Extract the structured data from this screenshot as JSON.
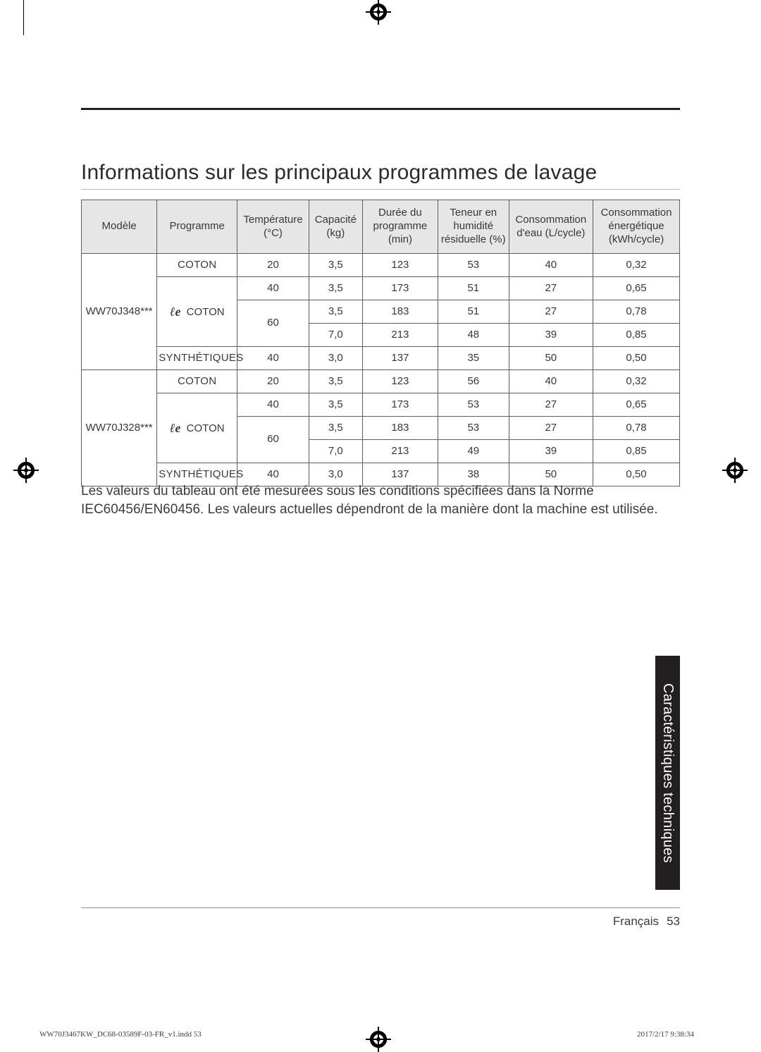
{
  "heading": "Informations sur les principaux programmes de lavage",
  "columns": [
    "Modèle",
    "Programme",
    "Température (°C)",
    "Capacité (kg)",
    "Durée du programme (min)",
    "Teneur en humidité résiduelle (%)",
    "Consommation d'eau (L/cycle)",
    "Consommation énergétique (kWh/cycle)"
  ],
  "models": [
    {
      "name": "WW70J348***",
      "rows": [
        {
          "programme": "COTON",
          "eco": false,
          "temp": "20",
          "cap": "3,5",
          "dur": "123",
          "hum": "53",
          "water": "40",
          "energy": "0,32"
        },
        {
          "programme": " COTON",
          "eco": true,
          "temp": "40",
          "cap": "3,5",
          "dur": "173",
          "hum": "51",
          "water": "27",
          "energy": "0,65"
        },
        {
          "programme": "",
          "eco": false,
          "temp": "60",
          "cap": "3,5",
          "dur": "183",
          "hum": "51",
          "water": "27",
          "energy": "0,78"
        },
        {
          "programme": "",
          "eco": false,
          "temp": "",
          "cap": "7,0",
          "dur": "213",
          "hum": "48",
          "water": "39",
          "energy": "0,85"
        },
        {
          "programme": "SYNTHÉTIQUES",
          "eco": false,
          "temp": "40",
          "cap": "3,0",
          "dur": "137",
          "hum": "35",
          "water": "50",
          "energy": "0,50"
        }
      ]
    },
    {
      "name": "WW70J328***",
      "rows": [
        {
          "programme": "COTON",
          "eco": false,
          "temp": "20",
          "cap": "3,5",
          "dur": "123",
          "hum": "56",
          "water": "40",
          "energy": "0,32"
        },
        {
          "programme": " COTON",
          "eco": true,
          "temp": "40",
          "cap": "3,5",
          "dur": "173",
          "hum": "53",
          "water": "27",
          "energy": "0,65"
        },
        {
          "programme": "",
          "eco": false,
          "temp": "60",
          "cap": "3,5",
          "dur": "183",
          "hum": "53",
          "water": "27",
          "energy": "0,78"
        },
        {
          "programme": "",
          "eco": false,
          "temp": "",
          "cap": "7,0",
          "dur": "213",
          "hum": "49",
          "water": "39",
          "energy": "0,85"
        },
        {
          "programme": "SYNTHÉTIQUES",
          "eco": false,
          "temp": "40",
          "cap": "3,0",
          "dur": "137",
          "hum": "38",
          "water": "50",
          "energy": "0,50"
        }
      ]
    }
  ],
  "note": "Les valeurs du tableau ont été mesurées sous les conditions spécifiées dans la Norme IEC60456/EN60456. Les valeurs actuelles dépendront de la manière dont la machine est utilisée.",
  "side_tab": "Caractéristiques techniques",
  "footer": {
    "lang": "Français",
    "page": "53"
  },
  "print": {
    "file": "WW70J3467KW_DC68-03589F-03-FR_v1.indd   53",
    "ts": "2017/2/17   9:38:34"
  },
  "eco_glyph": "ℓe",
  "colors": {
    "header_bg": "#e6e6e6",
    "border": "#5e5e5e",
    "rule_top": "#231f20",
    "tab_bg": "#231f20",
    "text": "#3a3a3a"
  }
}
